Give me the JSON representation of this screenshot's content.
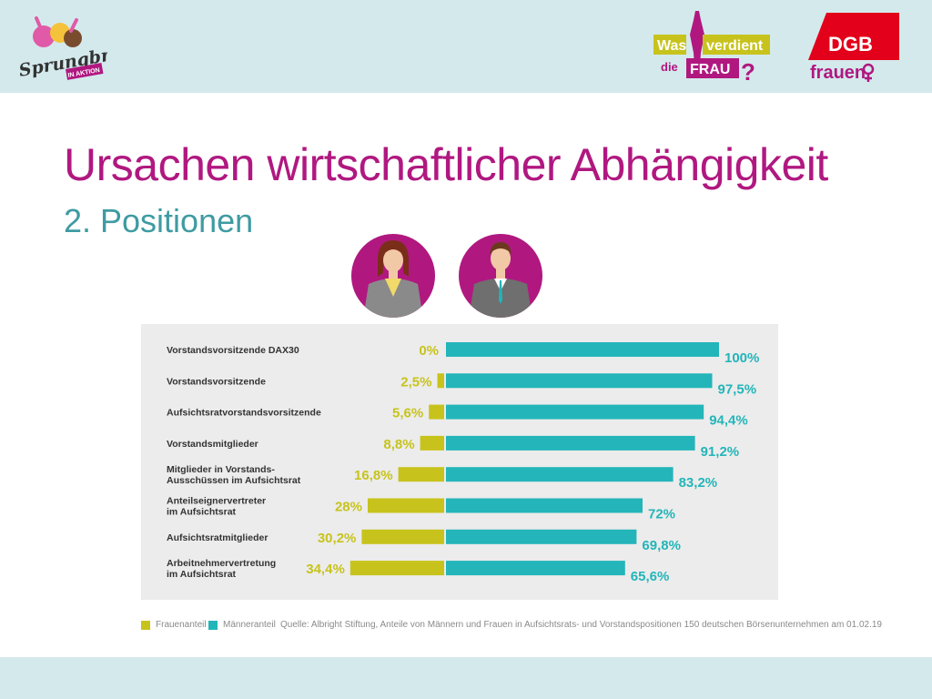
{
  "header": {
    "sprungbrett_logo": {
      "line1": "Sprungbrett",
      "line2": "IN AKTION"
    },
    "wasverdient_logo": {
      "was": "Was",
      "verdient": "verdient",
      "die": "die",
      "frau": "FRAU",
      "q": "?"
    },
    "dgb_logo": {
      "dgb": "DGB",
      "frauen": "frauen"
    },
    "colors": {
      "band": "#d4e9ec",
      "magenta": "#b01880",
      "teal": "#3f9ba2",
      "olive": "#c7c31c"
    }
  },
  "slide": {
    "title": "Ursachen wirtschaftlicher Abhängigkeit",
    "subtitle": "2. Positionen"
  },
  "chart_data": {
    "type": "bar",
    "orientation": "horizontal-diverging",
    "categories": [
      [
        "Vorstandsvorsitzende DAX30"
      ],
      [
        "Vorstandsvorsitzende"
      ],
      [
        "Aufsichtsratvorstandsvorsitzende"
      ],
      [
        "Vorstandsmitglieder"
      ],
      [
        "Mitglieder in Vorstands-",
        "Ausschüssen im Aufsichtsrat"
      ],
      [
        "Anteilseignervertreter",
        "im Aufsichtsrat"
      ],
      [
        "Aufsichtsratmitglieder"
      ],
      [
        "Arbeitnehmervertretung",
        "im Aufsichtsrat"
      ]
    ],
    "series": [
      {
        "name": "Frauenanteil",
        "color": "#c7c31c",
        "values": [
          0,
          2.5,
          5.6,
          8.8,
          16.8,
          28,
          30.2,
          34.4
        ],
        "labels": [
          "0%",
          "2,5%",
          "5,6%",
          "8,8%",
          "16,8%",
          "28%",
          "30,2%",
          "34,4%"
        ]
      },
      {
        "name": "Männeranteil",
        "color": "#23b5b9",
        "values": [
          100,
          97.5,
          94.4,
          91.2,
          83.2,
          72,
          69.8,
          65.6
        ],
        "labels": [
          "100%",
          "97,5%",
          "94,4%",
          "91,2%",
          "83,2%",
          "72%",
          "69,8%",
          "65,6%"
        ]
      }
    ],
    "xlim": [
      0,
      100
    ],
    "grid": false,
    "legend": {
      "placement": "bottom-left"
    },
    "source": "Quelle: Albright Stiftung, Anteile von Männern und Frauen in Aufsichtsrats- und Vorstandspositionen 150 deutschen Börsenunternehmen am 01.02.19"
  }
}
